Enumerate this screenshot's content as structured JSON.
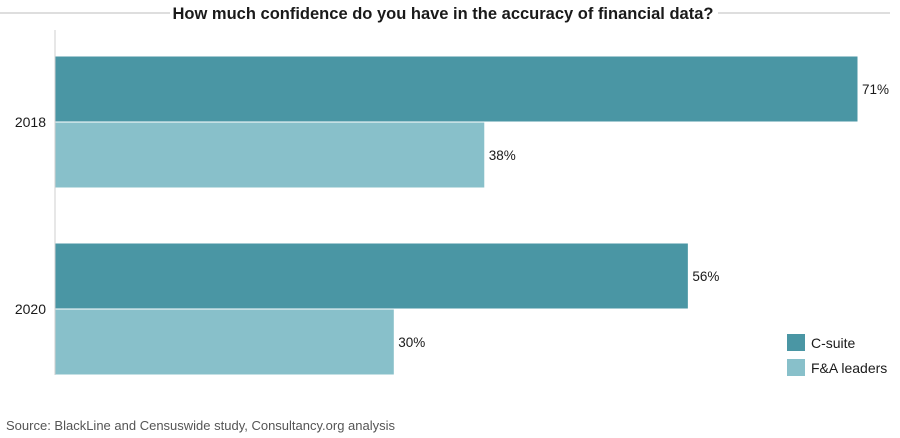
{
  "chart_data": {
    "type": "bar",
    "orientation": "horizontal",
    "title": "How much confidence do you have in the accuracy of financial data?",
    "categories": [
      "2018",
      "2020"
    ],
    "series": [
      {
        "name": "C-suite",
        "values": [
          71,
          56
        ],
        "color": "#4a96a4"
      },
      {
        "name": "F&A leaders",
        "values": [
          38,
          30
        ],
        "color": "#88c0ca"
      }
    ],
    "value_format": "percent",
    "xlim": [
      0,
      100
    ],
    "grid": false,
    "legend_position": "bottom-right",
    "source": "Source: BlackLine and Censuswide study, Consultancy.org analysis"
  }
}
